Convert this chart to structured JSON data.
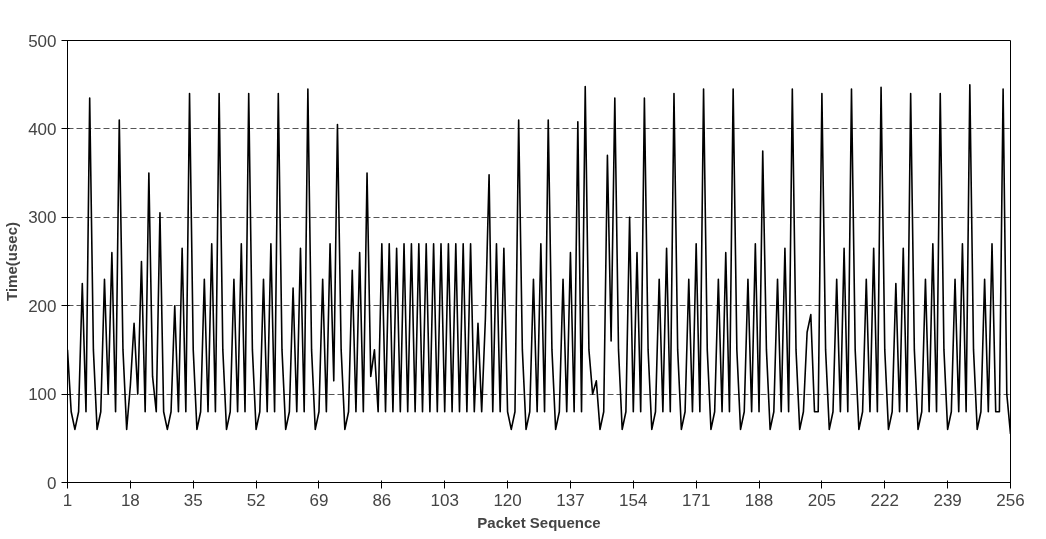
{
  "chart_data": {
    "type": "line",
    "xlabel": "Packet Sequence",
    "ylabel": "Time(usec)",
    "x": [
      1,
      2,
      3,
      4,
      5,
      6,
      7,
      8,
      9,
      10,
      11,
      12,
      13,
      14,
      15,
      16,
      17,
      18,
      19,
      20,
      21,
      22,
      23,
      24,
      25,
      26,
      27,
      28,
      29,
      30,
      31,
      32,
      33,
      34,
      35,
      36,
      37,
      38,
      39,
      40,
      41,
      42,
      43,
      44,
      45,
      46,
      47,
      48,
      49,
      50,
      51,
      52,
      53,
      54,
      55,
      56,
      57,
      58,
      59,
      60,
      61,
      62,
      63,
      64,
      65,
      66,
      67,
      68,
      69,
      70,
      71,
      72,
      73,
      74,
      75,
      76,
      77,
      78,
      79,
      80,
      81,
      82,
      83,
      84,
      85,
      86,
      87,
      88,
      89,
      90,
      91,
      92,
      93,
      94,
      95,
      96,
      97,
      98,
      99,
      100,
      101,
      102,
      103,
      104,
      105,
      106,
      107,
      108,
      109,
      110,
      111,
      112,
      113,
      114,
      115,
      116,
      117,
      118,
      119,
      120,
      121,
      122,
      123,
      124,
      125,
      126,
      127,
      128,
      129,
      130,
      131,
      132,
      133,
      134,
      135,
      136,
      137,
      138,
      139,
      140,
      141,
      142,
      143,
      144,
      145,
      146,
      147,
      148,
      149,
      150,
      151,
      152,
      153,
      154,
      155,
      156,
      157,
      158,
      159,
      160,
      161,
      162,
      163,
      164,
      165,
      166,
      167,
      168,
      169,
      170,
      171,
      172,
      173,
      174,
      175,
      176,
      177,
      178,
      179,
      180,
      181,
      182,
      183,
      184,
      185,
      186,
      187,
      188,
      189,
      190,
      191,
      192,
      193,
      194,
      195,
      196,
      197,
      198,
      199,
      200,
      201,
      202,
      203,
      204,
      205,
      206,
      207,
      208,
      209,
      210,
      211,
      212,
      213,
      214,
      215,
      216,
      217,
      218,
      219,
      220,
      221,
      222,
      223,
      224,
      225,
      226,
      227,
      228,
      229,
      230,
      231,
      232,
      233,
      234,
      235,
      236,
      237,
      238,
      239,
      240,
      241,
      242,
      243,
      244,
      245,
      246,
      247,
      248,
      249,
      250,
      251,
      252,
      253,
      254,
      255,
      256
    ],
    "series": [
      {
        "color": "#000000",
        "values": [
          150,
          80,
          60,
          80,
          225,
          80,
          435,
          150,
          60,
          80,
          230,
          100,
          260,
          80,
          410,
          150,
          60,
          110,
          180,
          100,
          250,
          80,
          350,
          120,
          80,
          305,
          80,
          60,
          80,
          200,
          80,
          265,
          80,
          440,
          150,
          60,
          80,
          230,
          80,
          270,
          80,
          440,
          150,
          60,
          80,
          230,
          80,
          270,
          80,
          440,
          150,
          60,
          80,
          230,
          80,
          270,
          80,
          440,
          150,
          60,
          80,
          220,
          80,
          265,
          80,
          445,
          150,
          60,
          80,
          230,
          80,
          270,
          115,
          405,
          150,
          60,
          80,
          240,
          80,
          260,
          80,
          350,
          120,
          150,
          80,
          270,
          80,
          270,
          80,
          265,
          80,
          270,
          80,
          270,
          80,
          270,
          80,
          270,
          80,
          270,
          80,
          270,
          80,
          270,
          80,
          270,
          80,
          270,
          80,
          270,
          80,
          180,
          80,
          185,
          348,
          80,
          270,
          80,
          265,
          80,
          60,
          80,
          410,
          150,
          60,
          80,
          230,
          80,
          270,
          80,
          410,
          150,
          60,
          80,
          230,
          80,
          260,
          80,
          408,
          80,
          448,
          150,
          100,
          115,
          60,
          80,
          370,
          160,
          435,
          150,
          60,
          80,
          300,
          80,
          260,
          80,
          435,
          150,
          60,
          80,
          230,
          80,
          265,
          80,
          440,
          150,
          60,
          80,
          230,
          80,
          270,
          80,
          445,
          150,
          60,
          80,
          230,
          80,
          260,
          80,
          445,
          150,
          60,
          80,
          230,
          80,
          270,
          80,
          375,
          150,
          60,
          80,
          230,
          80,
          265,
          80,
          445,
          150,
          60,
          80,
          170,
          190,
          80,
          80,
          440,
          150,
          60,
          80,
          230,
          80,
          265,
          80,
          445,
          150,
          60,
          80,
          230,
          80,
          265,
          80,
          447,
          150,
          60,
          80,
          225,
          80,
          265,
          80,
          440,
          150,
          60,
          80,
          230,
          80,
          270,
          80,
          440,
          150,
          60,
          80,
          230,
          80,
          270,
          80,
          450,
          150,
          60,
          80,
          230,
          80,
          270,
          80,
          80,
          445,
          100,
          55
        ]
      }
    ],
    "xlim": [
      1,
      256
    ],
    "xticks": [
      1,
      18,
      35,
      52,
      69,
      86,
      103,
      120,
      137,
      154,
      171,
      188,
      205,
      222,
      239,
      256
    ],
    "ylim": [
      0,
      500
    ],
    "yticks": [
      0,
      100,
      200,
      300,
      400,
      500
    ],
    "grid": "y",
    "marker": "none",
    "line_style": "solid"
  }
}
